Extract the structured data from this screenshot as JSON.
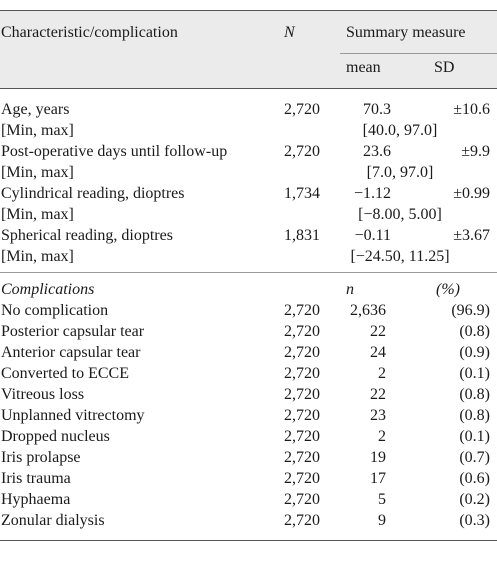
{
  "header": {
    "col_characteristic": "Characteristic/complication",
    "col_n": "N",
    "col_summary": "Summary measure",
    "col_mean": "mean",
    "col_sd": "SD"
  },
  "characteristics": [
    {
      "label": "Age, years",
      "n": "2,720",
      "mean": "70.3",
      "sd": "±10.6",
      "range_label": "[Min, max]",
      "range": "[40.0, 97.0]"
    },
    {
      "label": "Post-operative days until follow-up",
      "n": "2,720",
      "mean": "23.6",
      "sd": "±9.9",
      "range_label": "[Min, max]",
      "range": "[7.0, 97.0]"
    },
    {
      "label": "Cylindrical reading, dioptres",
      "n": "1,734",
      "mean": "−1.12",
      "sd": "±0.99",
      "range_label": "[Min, max]",
      "range": "[−8.00, 5.00]"
    },
    {
      "label": "Spherical reading, dioptres",
      "n": "1,831",
      "mean": "−0.11",
      "sd": "±3.67",
      "range_label": "[Min, max]",
      "range": "[−24.50, 11.25]"
    }
  ],
  "complications_header": {
    "label": "Complications",
    "n_col": "n",
    "pct_col": "(%)"
  },
  "complications": [
    {
      "label": "No complication",
      "N": "2,720",
      "n": "2,636",
      "pct": "(96.9)"
    },
    {
      "label": "Posterior capsular tear",
      "N": "2,720",
      "n": "22",
      "pct": "(0.8)"
    },
    {
      "label": "Anterior capsular tear",
      "N": "2,720",
      "n": "24",
      "pct": "(0.9)"
    },
    {
      "label": "Converted to ECCE",
      "N": "2,720",
      "n": "2",
      "pct": "(0.1)"
    },
    {
      "label": "Vitreous loss",
      "N": "2,720",
      "n": "22",
      "pct": "(0.8)"
    },
    {
      "label": "Unplanned vitrectomy",
      "N": "2,720",
      "n": "23",
      "pct": "(0.8)"
    },
    {
      "label": "Dropped nucleus",
      "N": "2,720",
      "n": "2",
      "pct": "(0.1)"
    },
    {
      "label": "Iris prolapse",
      "N": "2,720",
      "n": "19",
      "pct": "(0.7)"
    },
    {
      "label": "Iris trauma",
      "N": "2,720",
      "n": "17",
      "pct": "(0.6)"
    },
    {
      "label": "Hyphaema",
      "N": "2,720",
      "n": "5",
      "pct": "(0.2)"
    },
    {
      "label": "Zonular dialysis",
      "N": "2,720",
      "n": "9",
      "pct": "(0.3)"
    }
  ]
}
